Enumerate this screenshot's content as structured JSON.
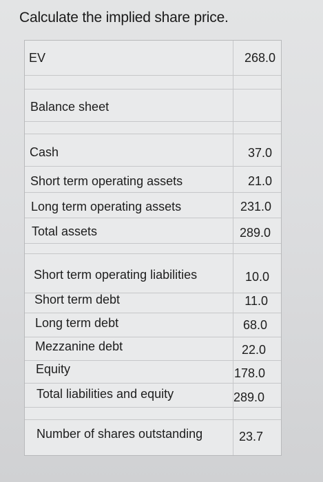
{
  "title": "Calculate the implied share price.",
  "ev": {
    "label": "EV",
    "value": "268.0"
  },
  "balance_sheet_label": "Balance sheet",
  "assets": [
    {
      "label": "Cash",
      "value": "37.0"
    },
    {
      "label": "Short term operating assets",
      "value": "21.0"
    },
    {
      "label": "Long term operating assets",
      "value": "231.0"
    },
    {
      "label": "Total assets",
      "value": "289.0"
    }
  ],
  "liabilities": [
    {
      "label": "Short term operating liabilities",
      "value": "10.0"
    },
    {
      "label": "Short term debt",
      "value": "11.0"
    },
    {
      "label": "Long term debt",
      "value": "68.0"
    },
    {
      "label": "Mezzanine debt",
      "value": "22.0"
    },
    {
      "label": "Equity",
      "value": "178.0"
    },
    {
      "label": "Total liabilities and equity",
      "value": "289.0"
    }
  ],
  "shares": {
    "label": "Number of shares outstanding",
    "value": "23.7"
  }
}
